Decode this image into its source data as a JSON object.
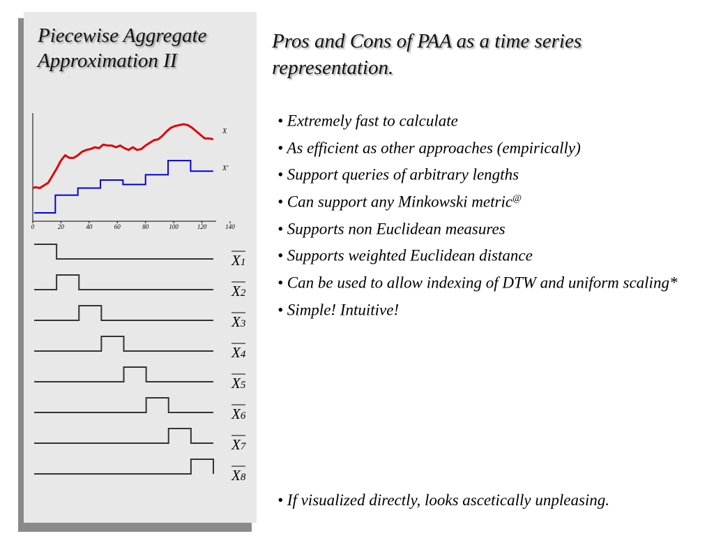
{
  "left_title": "Piecewise Aggregate Approximation II",
  "main_title": "Pros and Cons of PAA as a time series representation.",
  "bullets": [
    {
      "text": "• Extremely fast to calculate",
      "sup": ""
    },
    {
      "text": "• As efficient as other approaches (empirically)",
      "sup": ""
    },
    {
      "text": "• Support queries of arbitrary lengths",
      "sup": ""
    },
    {
      "text": "• Can support any Minkowski metric",
      "sup": "@"
    },
    {
      "text": "• Supports non Euclidean measures",
      "sup": ""
    },
    {
      "text": "• Supports weighted Euclidean distance",
      "sup": ""
    },
    {
      "text": "• Can be used to allow indexing of DTW and uniform scaling*",
      "sup": ""
    },
    {
      "text": "• Simple! Intuitive!",
      "sup": ""
    }
  ],
  "last_bullet": "• If visualized directly, looks ascetically unpleasing.",
  "chart_data": {
    "type": "line",
    "title": "",
    "xlabel": "",
    "ylabel": "",
    "xlim": [
      0,
      140
    ],
    "ylim": [
      0,
      1
    ],
    "x_ticks": [
      0,
      20,
      40,
      60,
      80,
      100,
      120,
      140
    ],
    "grid": false,
    "series": [
      {
        "name": "X",
        "color": "#e00000",
        "x": [
          0,
          2,
          5,
          8,
          11,
          14,
          17,
          20,
          23,
          26,
          29,
          32,
          35,
          38,
          41,
          44,
          47,
          50,
          53,
          56,
          59,
          62,
          65,
          68,
          71,
          74,
          77,
          80,
          83,
          86,
          89,
          92,
          95,
          98,
          101,
          104,
          107,
          110,
          113,
          116,
          119,
          122,
          125,
          128
        ],
        "y": [
          0.28,
          0.29,
          0.28,
          0.31,
          0.34,
          0.42,
          0.5,
          0.59,
          0.65,
          0.62,
          0.62,
          0.65,
          0.69,
          0.71,
          0.72,
          0.74,
          0.73,
          0.77,
          0.76,
          0.76,
          0.74,
          0.76,
          0.73,
          0.71,
          0.74,
          0.71,
          0.72,
          0.76,
          0.79,
          0.82,
          0.83,
          0.87,
          0.92,
          0.96,
          0.98,
          0.99,
          1.0,
          0.99,
          0.96,
          0.92,
          0.88,
          0.84,
          0.84,
          0.83
        ]
      },
      {
        "name": "X'",
        "color": "#0000dd",
        "segments": [
          {
            "x0": 1,
            "x1": 16,
            "y": 0.0
          },
          {
            "x0": 16,
            "x1": 32,
            "y": 0.2
          },
          {
            "x0": 32,
            "x1": 48,
            "y": 0.28
          },
          {
            "x0": 48,
            "x1": 64,
            "y": 0.37
          },
          {
            "x0": 64,
            "x1": 80,
            "y": 0.32
          },
          {
            "x0": 80,
            "x1": 96,
            "y": 0.43
          },
          {
            "x0": 96,
            "x1": 112,
            "y": 0.59
          },
          {
            "x0": 112,
            "x1": 128,
            "y": 0.47
          }
        ]
      }
    ]
  },
  "basis_functions": [
    {
      "symbol": "X",
      "index": "1"
    },
    {
      "symbol": "X",
      "index": "2"
    },
    {
      "symbol": "X",
      "index": "3"
    },
    {
      "symbol": "X",
      "index": "4"
    },
    {
      "symbol": "X",
      "index": "5"
    },
    {
      "symbol": "X",
      "index": "6"
    },
    {
      "symbol": "X",
      "index": "7"
    },
    {
      "symbol": "X",
      "index": "8"
    }
  ]
}
